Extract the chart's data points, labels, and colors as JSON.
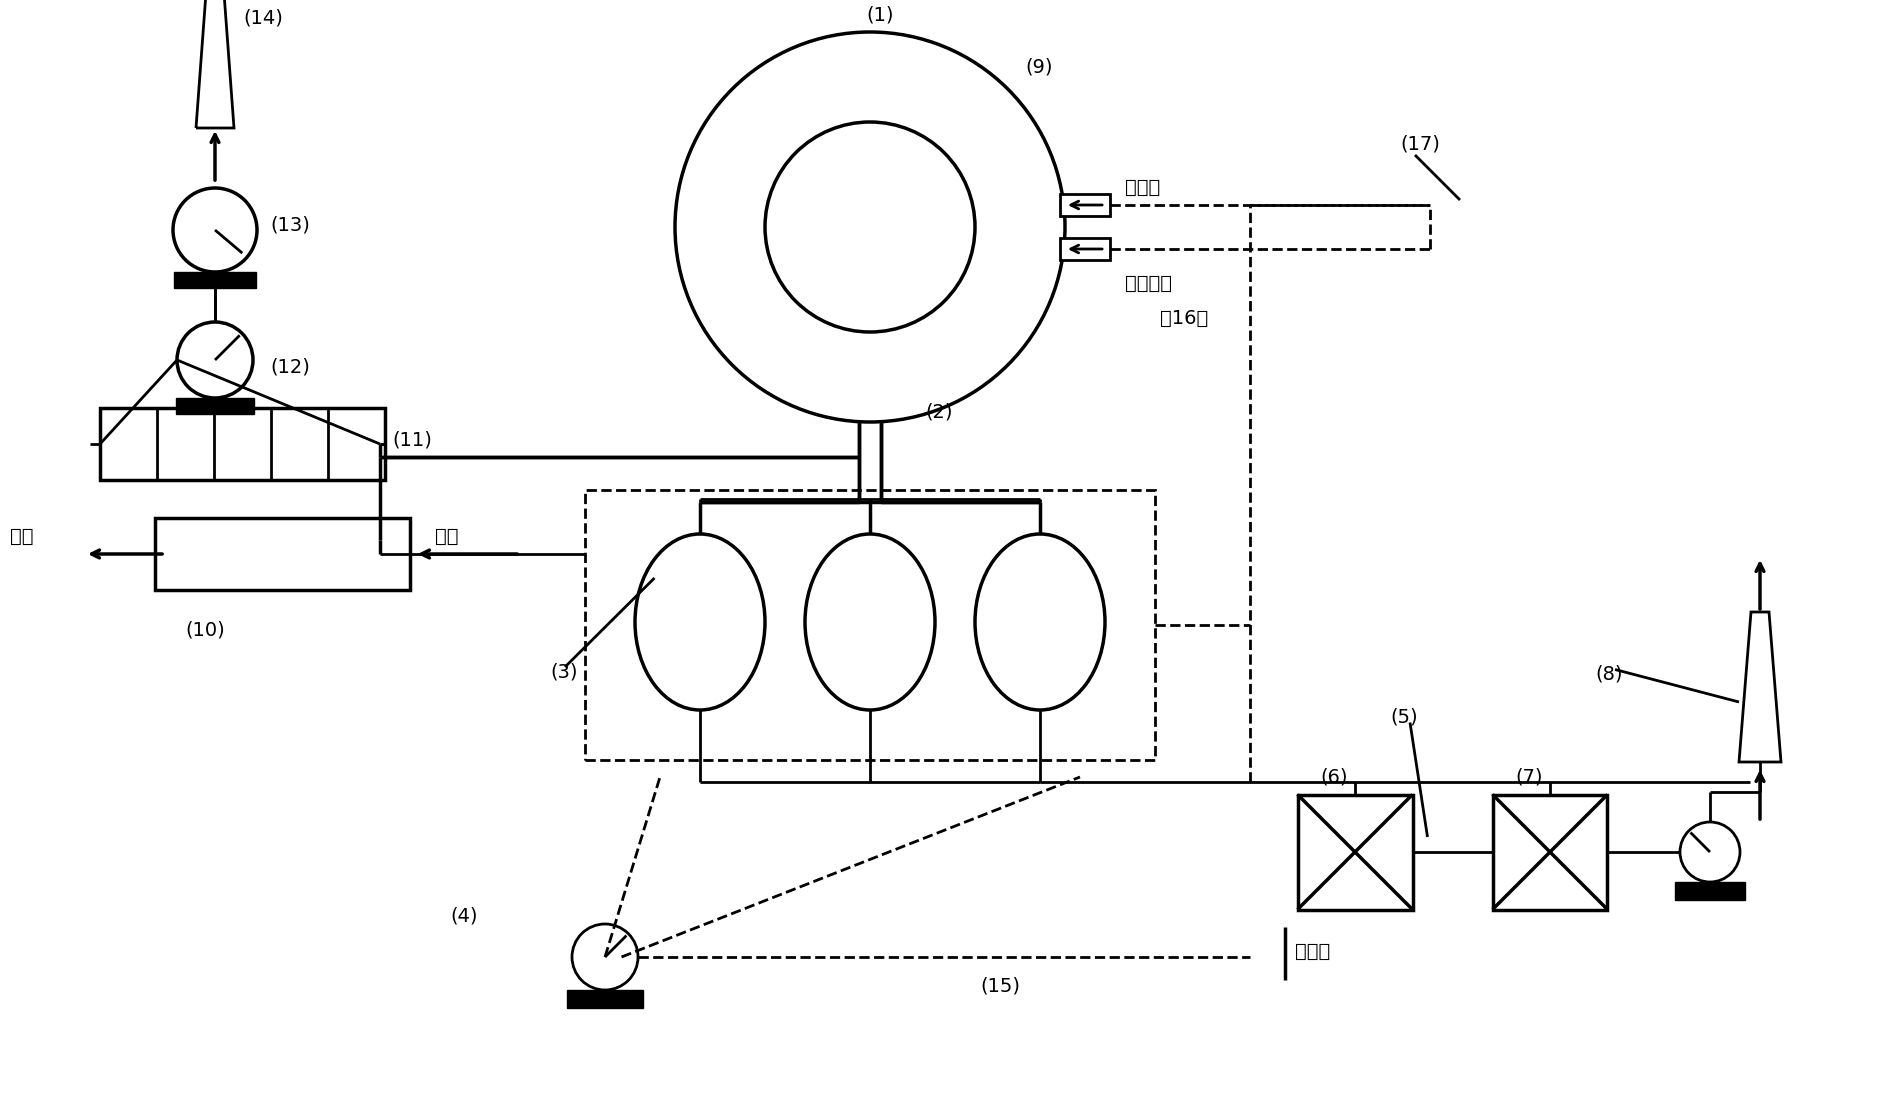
{
  "bg": "#ffffff",
  "labels": {
    "1": "(1)",
    "2": "(2)",
    "3": "(3)",
    "4": "(4)",
    "5": "(5)",
    "6": "(6)",
    "7": "(7)",
    "8": "(8)",
    "9": "(9)",
    "10": "(10)",
    "11": "(11)",
    "12": "(12)",
    "13": "(13)",
    "14": "(14)",
    "15": "(15)",
    "16": "（16）",
    "17": "(17)"
  },
  "texts": {
    "hot_gas": "热煤气",
    "combus": "助燃空气",
    "ore_in": "矿粉",
    "ore_out": "矿粉",
    "cold_gas": "冷煤气"
  }
}
